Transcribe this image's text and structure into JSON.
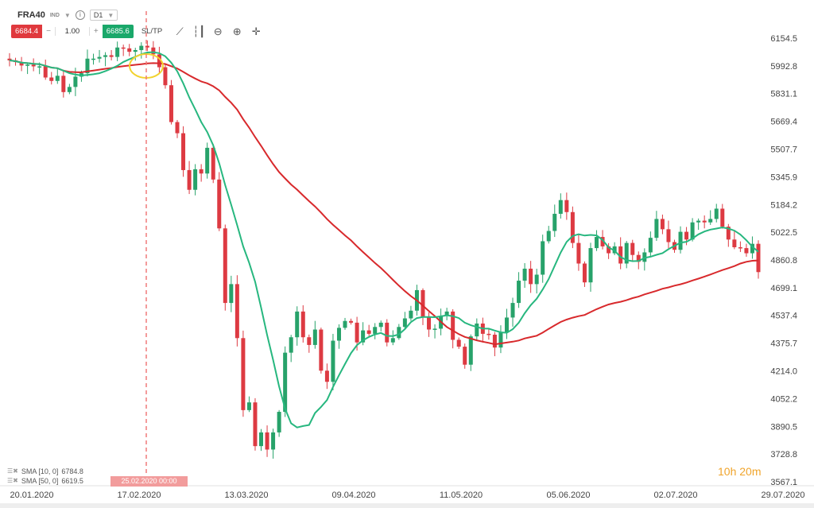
{
  "header": {
    "symbol": "FRA40",
    "symbol_tag": "IND",
    "timeframe": "D1",
    "sell_price": "6684.4",
    "quantity": "1.00",
    "buy_price": "6685.6",
    "sltp_label": "SL/TP",
    "minus": "−",
    "plus": "+"
  },
  "icons": [
    "chevron-down-icon",
    "info-icon",
    "line-chart-icon",
    "candles-icon",
    "zoom-out-icon",
    "zoom-in-icon",
    "crosshair-icon"
  ],
  "legend": [
    {
      "label": "SMA [10, 0]",
      "value": "6784.8",
      "color": "#27b77f"
    },
    {
      "label": "SMA [50, 0]",
      "value": "6619.5",
      "color": "#d8292c"
    }
  ],
  "cursor_date": "25.02.2020 00:00",
  "timer": "10h 20m",
  "colors": {
    "up": "#27a26a",
    "down": "#dd3a42",
    "sma10": "#27b77f",
    "sma50": "#d8292c",
    "cursor": "#f07a7a",
    "highlight": "#f2d22e"
  },
  "chart_data": {
    "type": "candlestick",
    "x_tick_labels": [
      "20.01.2020",
      "17.02.2020",
      "13.03.2020",
      "09.04.2020",
      "11.05.2020",
      "05.06.2020",
      "02.07.2020",
      "29.07.2020"
    ],
    "y_tick_labels": [
      "6154.5",
      "5992.8",
      "5831.1",
      "5669.4",
      "5507.7",
      "5345.9",
      "5184.2",
      "5022.5",
      "4860.8",
      "4699.1",
      "4537.4",
      "4375.7",
      "4214.0",
      "4052.2",
      "3890.5",
      "3728.8",
      "3567.1"
    ],
    "ylim": [
      3567.1,
      6154.5
    ],
    "grid": false,
    "series_legend_position": "bottom-left",
    "closes": [
      6025,
      6015,
      5995,
      6000,
      5990,
      5990,
      5925,
      5905,
      5935,
      5840,
      5870,
      5930,
      5950,
      6035,
      6035,
      6045,
      6055,
      6045,
      6100,
      6095,
      6075,
      6085,
      6110,
      6100,
      6060,
      5985,
      5880,
      5665,
      5600,
      5385,
      5270,
      5390,
      5365,
      5515,
      5330,
      5045,
      4610,
      4720,
      4405,
      3985,
      4030,
      3775,
      3855,
      3755,
      3855,
      3975,
      4320,
      4410,
      4560,
      4410,
      4365,
      4455,
      4215,
      4150,
      4390,
      4465,
      4505,
      4495,
      4380,
      4450,
      4430,
      4470,
      4495,
      4380,
      4405,
      4470,
      4520,
      4565,
      4685,
      4525,
      4455,
      4460,
      4535,
      4560,
      4395,
      4355,
      4250,
      4415,
      4490,
      4430,
      4425,
      4350,
      4440,
      4525,
      4610,
      4740,
      4810,
      4720,
      4775,
      4970,
      5030,
      5130,
      5210,
      5140,
      4960,
      4840,
      4730,
      4930,
      4995,
      4940,
      4900,
      4940,
      4840,
      4960,
      4890,
      4850,
      4905,
      4990,
      5100,
      5040,
      4965,
      4920,
      5025,
      4980,
      5080,
      5090,
      5080,
      5100,
      5160,
      5055,
      4980,
      4935,
      4930,
      4900,
      4955,
      4790
    ],
    "sma10": [
      6025,
      6020,
      6012,
      6009,
      6005,
      6003,
      5993,
      5983,
      5979,
      5965,
      5950,
      5942,
      5937,
      5940,
      5944,
      5950,
      5962,
      5977,
      5993,
      6016,
      6031,
      6046,
      6061,
      6071,
      6073,
      6067,
      6049,
      6011,
      5961,
      5891,
      5809,
      5739,
      5665,
      5607,
      5530,
      5424,
      5297,
      5183,
      5063,
      4940,
      4845,
      4733,
      4582,
      4424,
      4277,
      4123,
      3993,
      3908,
      3884,
      3892,
      3898,
      3968,
      4004,
      4044,
      4120,
      4189,
      4254,
      4318,
      4364,
      4392,
      4412,
      4427,
      4435,
      4418,
      4417,
      4427,
      4458,
      4498,
      4522,
      4528,
      4528,
      4527,
      4532,
      4538,
      4533,
      4522,
      4495,
      4480,
      4470,
      4461,
      4460,
      4449,
      4439,
      4436,
      4457,
      4495,
      4550,
      4597,
      4635,
      4689,
      4749,
      4827,
      4904,
      4966,
      5001,
      5011,
      5003,
      5007,
      5004,
      4977,
      4934,
      4915,
      4878,
      4860,
      4854,
      4855,
      4873,
      4880,
      4891,
      4900,
      4924,
      4943,
      4962,
      4967,
      4986,
      5010,
      5027,
      5038,
      5044,
      5051,
      5044,
      5032,
      5009,
      4976,
      4938,
      4908
    ],
    "sma50": [
      6025,
      6020,
      6012,
      6009,
      6005,
      6003,
      5993,
      5983,
      5979,
      5965,
      5958,
      5956,
      5955,
      5961,
      5966,
      5971,
      5976,
      5980,
      5986,
      5991,
      5995,
      5999,
      6003,
      6007,
      6009,
      6008,
      6004,
      5991,
      5978,
      5958,
      5937,
      5919,
      5902,
      5891,
      5874,
      5850,
      5812,
      5778,
      5737,
      5682,
      5633,
      5577,
      5526,
      5472,
      5420,
      5373,
      5336,
      5301,
      5271,
      5237,
      5204,
      5173,
      5137,
      5099,
      5066,
      5035,
      5004,
      4975,
      4940,
      4907,
      4875,
      4843,
      4814,
      4780,
      4745,
      4711,
      4679,
      4650,
      4625,
      4594,
      4563,
      4533,
      4500,
      4470,
      4449,
      4428,
      4412,
      4402,
      4392,
      4384,
      4377,
      4369,
      4374,
      4379,
      4384,
      4391,
      4403,
      4411,
      4419,
      4437,
      4459,
      4479,
      4499,
      4513,
      4524,
      4533,
      4540,
      4557,
      4574,
      4588,
      4601,
      4610,
      4617,
      4626,
      4638,
      4647,
      4660,
      4670,
      4681,
      4693,
      4701,
      4711,
      4719,
      4729,
      4741,
      4752,
      4764,
      4776,
      4789,
      4802,
      4813,
      4825,
      4840,
      4850,
      4856,
      4858
    ]
  }
}
